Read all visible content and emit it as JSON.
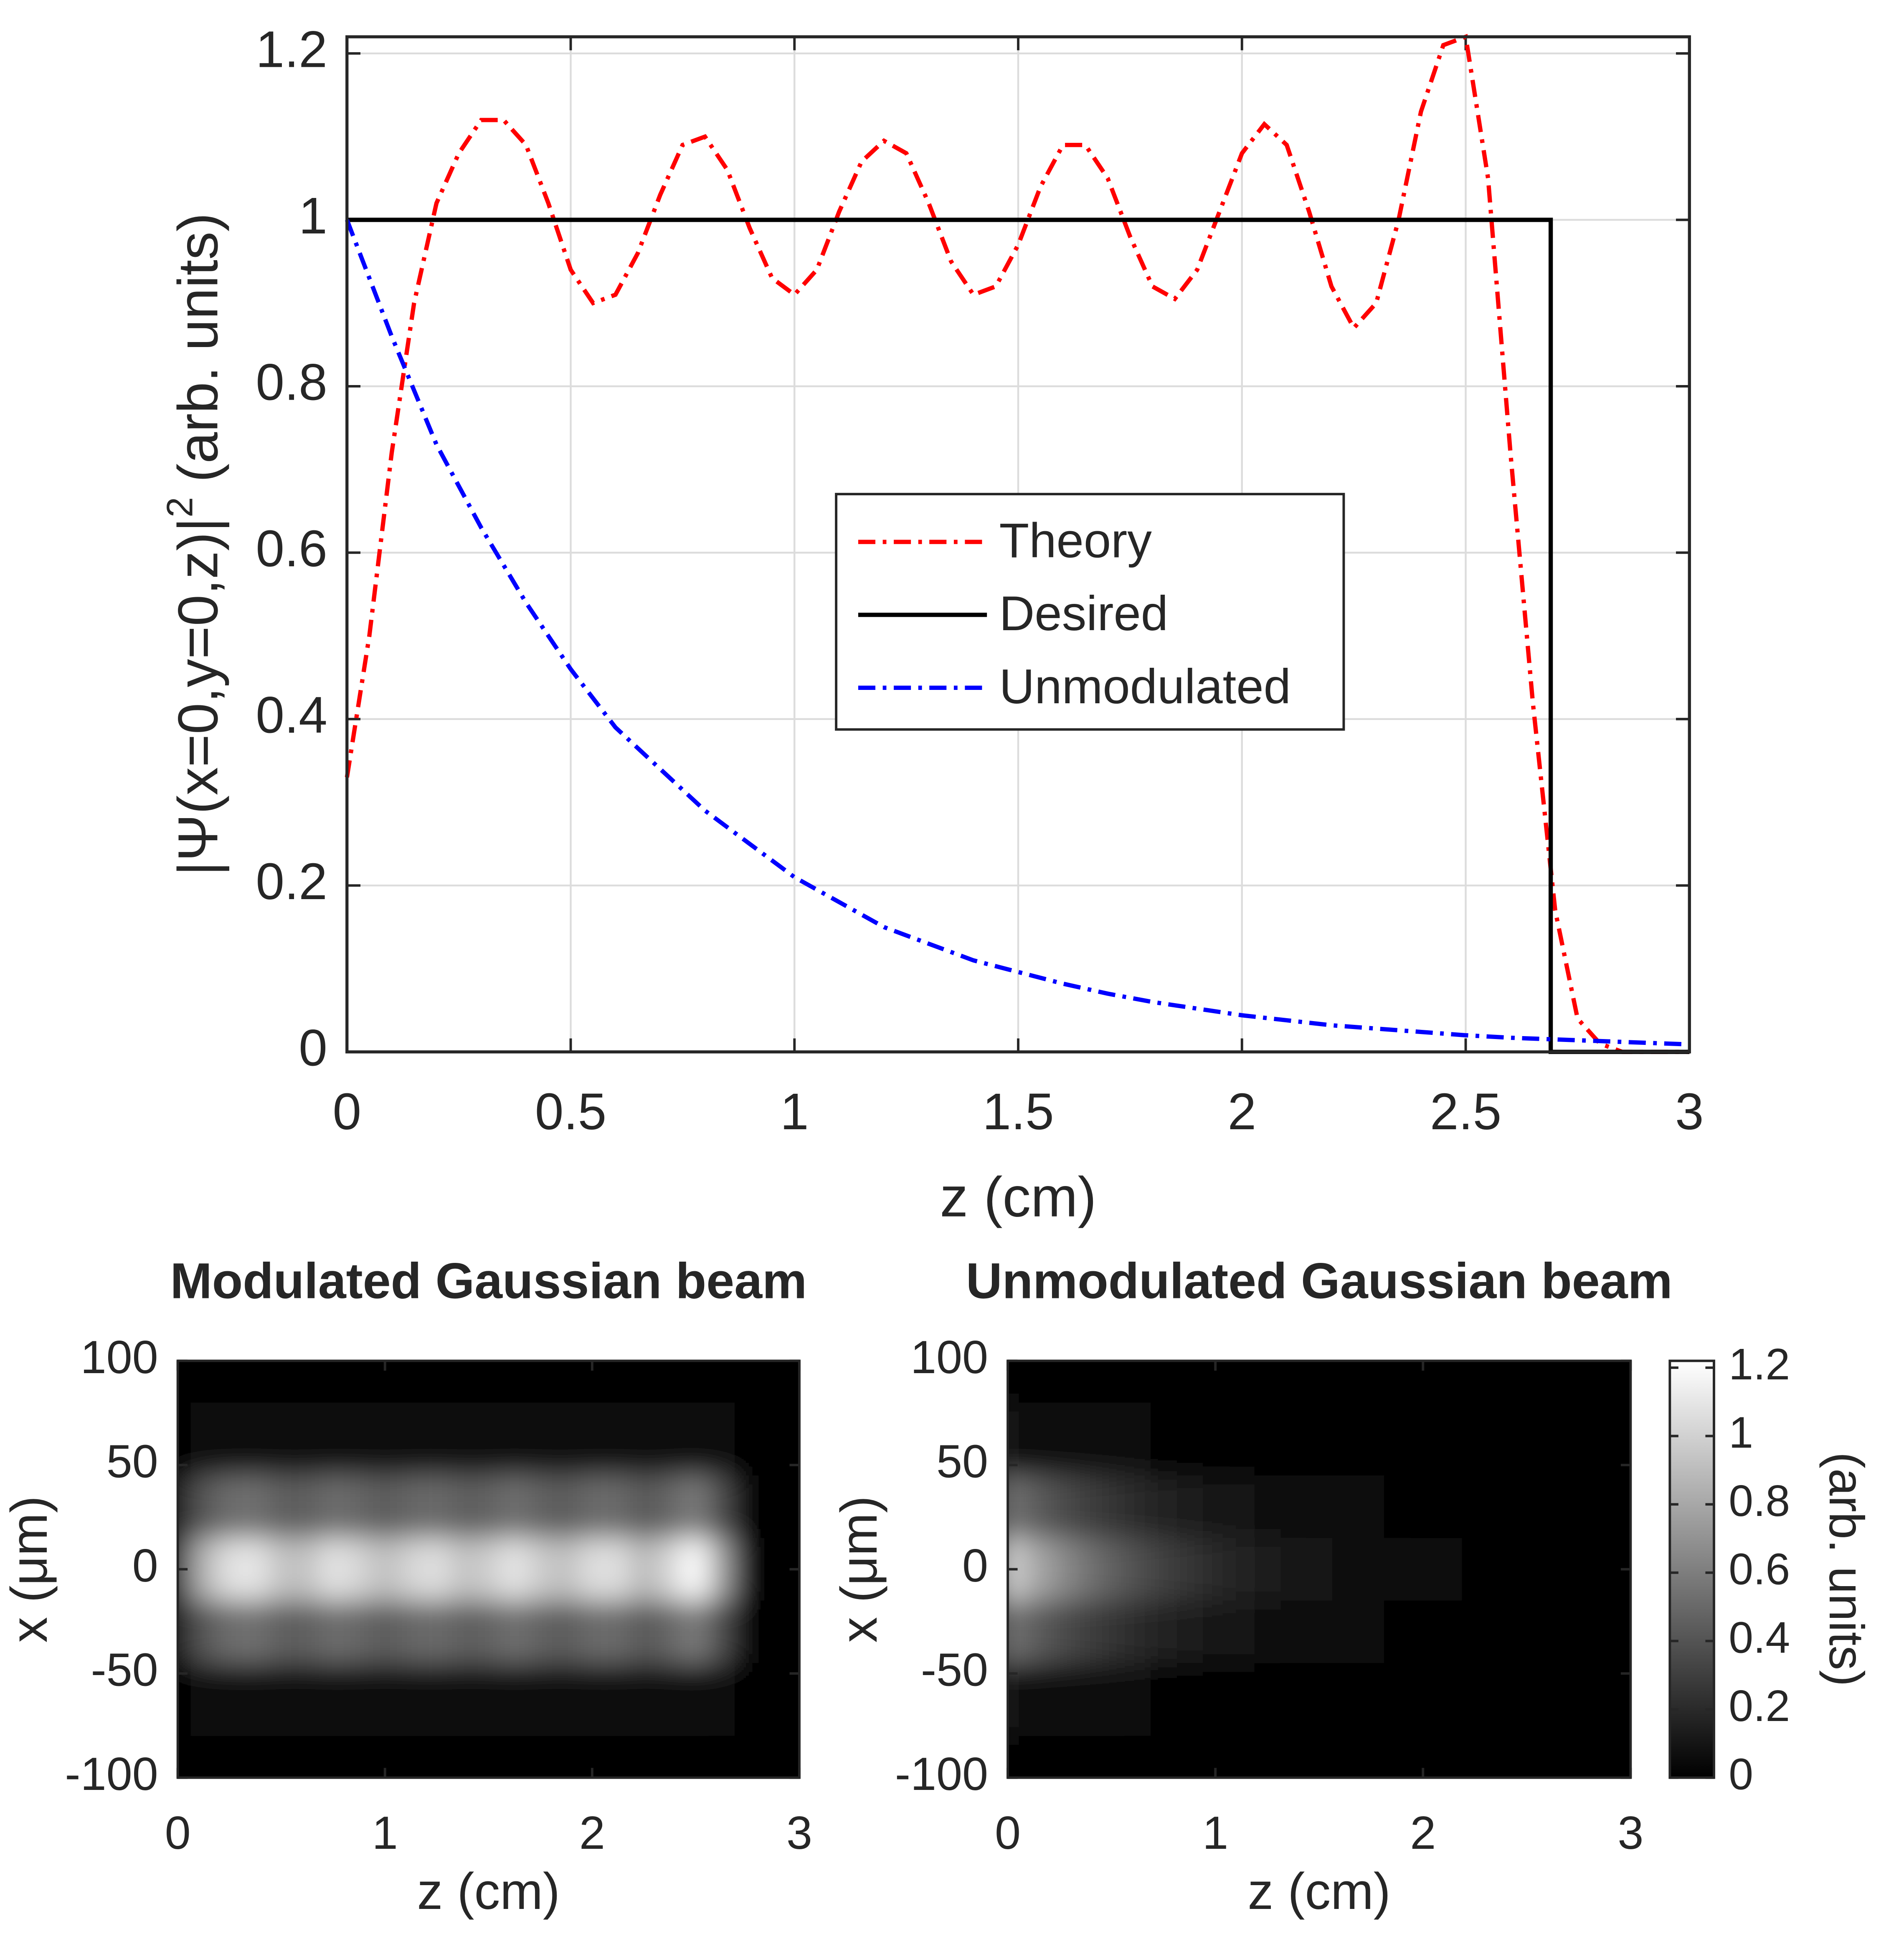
{
  "chart_data": [
    {
      "type": "line",
      "xlabel": "z (cm)",
      "ylabel": "|Ψ(x=0,y=0,z)|",
      "ylabel_sup": "2",
      "ylabel_unit": "(arb. units)",
      "xlim": [
        0,
        3
      ],
      "ylim": [
        0,
        1.22
      ],
      "xticks": [
        0,
        0.5,
        1,
        1.5,
        2,
        2.5,
        3
      ],
      "yticks": [
        0,
        0.2,
        0.4,
        0.6,
        0.8,
        1,
        1.2
      ],
      "grid": true,
      "legend": "center",
      "series": [
        {
          "name": "Theory",
          "color": "#ff0000",
          "dash": "dashdot",
          "x": [
            0,
            0.05,
            0.1,
            0.15,
            0.2,
            0.25,
            0.3,
            0.35,
            0.4,
            0.45,
            0.5,
            0.55,
            0.6,
            0.65,
            0.7,
            0.75,
            0.8,
            0.85,
            0.9,
            0.95,
            1,
            1.05,
            1.1,
            1.15,
            1.2,
            1.25,
            1.3,
            1.35,
            1.4,
            1.45,
            1.5,
            1.55,
            1.6,
            1.65,
            1.7,
            1.75,
            1.8,
            1.85,
            1.9,
            1.95,
            2,
            2.05,
            2.1,
            2.15,
            2.2,
            2.25,
            2.3,
            2.35,
            2.4,
            2.45,
            2.5,
            2.55,
            2.6,
            2.65,
            2.7,
            2.75,
            2.8,
            2.85,
            2.9,
            2.95,
            3
          ],
          "values": [
            0.33,
            0.5,
            0.72,
            0.9,
            1.02,
            1.08,
            1.12,
            1.12,
            1.09,
            1.02,
            0.94,
            0.9,
            0.91,
            0.96,
            1.03,
            1.09,
            1.1,
            1.06,
            0.99,
            0.93,
            0.91,
            0.94,
            1.01,
            1.07,
            1.095,
            1.08,
            1.02,
            0.95,
            0.91,
            0.92,
            0.97,
            1.04,
            1.09,
            1.09,
            1.05,
            0.98,
            0.92,
            0.905,
            0.94,
            1.01,
            1.08,
            1.115,
            1.09,
            1.01,
            0.92,
            0.87,
            0.9,
            1.0,
            1.13,
            1.21,
            1.22,
            1.05,
            0.72,
            0.42,
            0.17,
            0.04,
            0.01,
            0,
            0,
            0,
            0
          ]
        },
        {
          "name": "Desired",
          "color": "#000000",
          "dash": "solid",
          "x": [
            0,
            2.69,
            2.69,
            3
          ],
          "values": [
            1,
            1,
            0,
            0
          ]
        },
        {
          "name": "Unmodulated",
          "color": "#0000ff",
          "dash": "dashdot",
          "x": [
            0,
            0.1,
            0.2,
            0.3,
            0.4,
            0.5,
            0.6,
            0.7,
            0.8,
            0.9,
            1,
            1.1,
            1.2,
            1.3,
            1.4,
            1.5,
            1.6,
            1.7,
            1.8,
            1.9,
            2,
            2.1,
            2.2,
            2.3,
            2.4,
            2.5,
            2.6,
            2.7,
            2.8,
            2.9,
            3
          ],
          "values": [
            1,
            0.86,
            0.73,
            0.63,
            0.54,
            0.46,
            0.39,
            0.34,
            0.29,
            0.25,
            0.21,
            0.18,
            0.15,
            0.13,
            0.11,
            0.096,
            0.082,
            0.07,
            0.06,
            0.052,
            0.044,
            0.038,
            0.032,
            0.028,
            0.024,
            0.02,
            0.017,
            0.015,
            0.013,
            0.011,
            0.009
          ]
        }
      ]
    },
    {
      "type": "heatmap",
      "title": "Modulated Gaussian beam",
      "xlabel": "z (cm)",
      "ylabel": "x (μm)",
      "xlim": [
        0,
        3
      ],
      "ylim": [
        -100,
        100
      ],
      "xticks": [
        0,
        1,
        2,
        3
      ],
      "yticks": [
        -100,
        -50,
        0,
        50,
        100
      ],
      "clim": [
        0,
        1.22
      ],
      "colormap": "gray",
      "x": [
        0,
        0.125,
        0.25,
        0.375,
        0.5,
        0.625,
        0.75,
        0.875,
        1,
        1.125,
        1.25,
        1.375,
        1.5,
        1.625,
        1.75,
        1.875,
        2,
        2.125,
        2.25,
        2.375,
        2.5,
        2.625,
        2.75,
        2.875,
        3
      ],
      "y": [
        100,
        60,
        30,
        0,
        -30,
        -60,
        -100
      ],
      "values": [
        [
          0,
          0,
          0,
          0,
          0,
          0,
          0,
          0,
          0,
          0,
          0,
          0,
          0,
          0,
          0,
          0,
          0,
          0,
          0,
          0,
          0,
          0,
          0,
          0,
          0
        ],
        [
          0.02,
          0.05,
          0.06,
          0.06,
          0.05,
          0.05,
          0.06,
          0.05,
          0.05,
          0.05,
          0.06,
          0.05,
          0.05,
          0.06,
          0.05,
          0.05,
          0.06,
          0.06,
          0.05,
          0.05,
          0.06,
          0.04,
          0,
          0,
          0
        ],
        [
          0.16,
          0.41,
          0.52,
          0.53,
          0.45,
          0.45,
          0.52,
          0.49,
          0.44,
          0.49,
          0.51,
          0.45,
          0.47,
          0.53,
          0.47,
          0.44,
          0.51,
          0.51,
          0.42,
          0.49,
          0.59,
          0.36,
          0.01,
          0,
          0
        ],
        [
          0.33,
          0.85,
          1.08,
          1.1,
          0.93,
          0.93,
          1.09,
          1.02,
          0.91,
          1.02,
          1.07,
          0.93,
          0.98,
          1.1,
          0.97,
          0.92,
          1.06,
          1.06,
          0.88,
          1.03,
          1.22,
          0.75,
          0.03,
          0,
          0
        ],
        [
          0.16,
          0.41,
          0.52,
          0.53,
          0.45,
          0.45,
          0.52,
          0.49,
          0.44,
          0.49,
          0.51,
          0.45,
          0.47,
          0.53,
          0.47,
          0.44,
          0.51,
          0.51,
          0.42,
          0.49,
          0.59,
          0.36,
          0.01,
          0,
          0
        ],
        [
          0.02,
          0.05,
          0.06,
          0.06,
          0.05,
          0.05,
          0.06,
          0.05,
          0.05,
          0.05,
          0.06,
          0.05,
          0.05,
          0.06,
          0.05,
          0.05,
          0.06,
          0.06,
          0.05,
          0.05,
          0.06,
          0.04,
          0,
          0,
          0
        ],
        [
          0,
          0,
          0,
          0,
          0,
          0,
          0,
          0,
          0,
          0,
          0,
          0,
          0,
          0,
          0,
          0,
          0,
          0,
          0,
          0,
          0,
          0,
          0,
          0,
          0
        ]
      ]
    },
    {
      "type": "heatmap",
      "title": "Unmodulated Gaussian beam",
      "xlabel": "z (cm)",
      "ylabel": "x (μm)",
      "xlim": [
        0,
        3
      ],
      "ylim": [
        -100,
        100
      ],
      "xticks": [
        0,
        1,
        2,
        3
      ],
      "yticks": [
        -100,
        -50,
        0,
        50,
        100
      ],
      "clim": [
        0,
        1.22
      ],
      "colormap": "gray",
      "colorbar": {
        "label": "(arb. units)",
        "ticks": [
          0,
          0.2,
          0.4,
          0.6,
          0.8,
          1,
          1.2
        ]
      },
      "x": [
        0,
        0.125,
        0.25,
        0.375,
        0.5,
        0.625,
        0.75,
        0.875,
        1,
        1.125,
        1.25,
        1.375,
        1.5,
        1.625,
        1.75,
        1.875,
        2,
        2.125,
        2.25,
        2.375,
        2.5,
        2.625,
        2.75,
        2.875,
        3
      ],
      "y": [
        100,
        60,
        30,
        0,
        -30,
        -60,
        -100
      ],
      "values": [
        [
          0,
          0,
          0,
          0,
          0,
          0,
          0,
          0,
          0,
          0,
          0,
          0,
          0,
          0,
          0,
          0,
          0,
          0,
          0,
          0,
          0,
          0,
          0,
          0,
          0
        ],
        [
          0.1,
          0.08,
          0.07,
          0.06,
          0.05,
          0.04,
          0.03,
          0.03,
          0.02,
          0.02,
          0.01,
          0.01,
          0.01,
          0.01,
          0.01,
          0.01,
          0,
          0,
          0,
          0,
          0,
          0,
          0,
          0,
          0
        ],
        [
          0.55,
          0.45,
          0.37,
          0.31,
          0.25,
          0.21,
          0.17,
          0.14,
          0.12,
          0.09,
          0.08,
          0.07,
          0.05,
          0.04,
          0.04,
          0.03,
          0.02,
          0.02,
          0.02,
          0.01,
          0.01,
          0.01,
          0.01,
          0.01,
          0
        ],
        [
          1,
          0.82,
          0.68,
          0.56,
          0.46,
          0.38,
          0.31,
          0.26,
          0.21,
          0.17,
          0.14,
          0.12,
          0.096,
          0.079,
          0.065,
          0.054,
          0.044,
          0.036,
          0.03,
          0.025,
          0.02,
          0.017,
          0.014,
          0.011,
          0.009
        ],
        [
          0.55,
          0.45,
          0.37,
          0.31,
          0.25,
          0.21,
          0.17,
          0.14,
          0.12,
          0.09,
          0.08,
          0.07,
          0.05,
          0.04,
          0.04,
          0.03,
          0.02,
          0.02,
          0.02,
          0.01,
          0.01,
          0.01,
          0.01,
          0.01,
          0
        ],
        [
          0.1,
          0.08,
          0.07,
          0.06,
          0.05,
          0.04,
          0.03,
          0.03,
          0.02,
          0.02,
          0.01,
          0.01,
          0.01,
          0.01,
          0.01,
          0.01,
          0,
          0,
          0,
          0,
          0,
          0,
          0,
          0,
          0
        ],
        [
          0,
          0,
          0,
          0,
          0,
          0,
          0,
          0,
          0,
          0,
          0,
          0,
          0,
          0,
          0,
          0,
          0,
          0,
          0,
          0,
          0,
          0,
          0,
          0,
          0
        ]
      ]
    }
  ]
}
